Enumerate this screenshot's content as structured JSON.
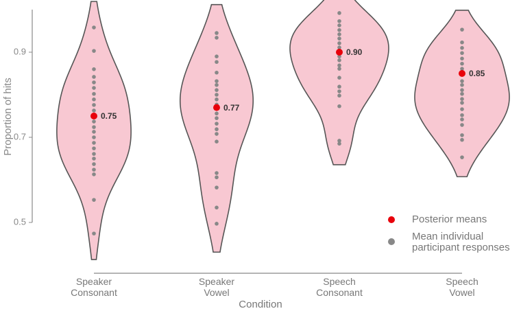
{
  "chart_data": {
    "type": "violin",
    "x_label": "Condition",
    "y_label": "Proportion of hits",
    "categories": [
      "Speaker\nConsonant",
      "Speaker\nVowel",
      "Speech\nConsonant",
      "Speech\nVowel"
    ],
    "violin_color": "#f8c8d2",
    "ylim": [
      0.38,
      1.0
    ],
    "yticks": [
      0.5,
      0.7,
      0.9
    ],
    "series": [
      {
        "name": "Posterior means",
        "color": "#e8000b",
        "values": [
          0.75,
          0.77,
          0.9,
          0.85
        ],
        "value_labels": [
          "0.75",
          "0.77",
          "0.90",
          "0.85"
        ]
      },
      {
        "name": "Mean individual\nparticipant responses",
        "color": "#888888",
        "values": [
          [
            0.958,
            0.903,
            0.86,
            0.842,
            0.829,
            0.816,
            0.802,
            0.789,
            0.776,
            0.763,
            0.737,
            0.724,
            0.713,
            0.7,
            0.687,
            0.674,
            0.661,
            0.65,
            0.637,
            0.624,
            0.613,
            0.553,
            0.474
          ],
          [
            0.945,
            0.934,
            0.89,
            0.877,
            0.852,
            0.832,
            0.823,
            0.811,
            0.8,
            0.789,
            0.777,
            0.756,
            0.745,
            0.732,
            0.719,
            0.708,
            0.69,
            0.616,
            0.606,
            0.582,
            0.535,
            0.497
          ],
          [
            0.992,
            0.973,
            0.963,
            0.952,
            0.942,
            0.932,
            0.921,
            0.911,
            0.89,
            0.881,
            0.869,
            0.861,
            0.84,
            0.819,
            0.808,
            0.798,
            0.773,
            0.692,
            0.685
          ],
          [
            0.953,
            0.923,
            0.91,
            0.898,
            0.885,
            0.873,
            0.861,
            0.832,
            0.823,
            0.811,
            0.802,
            0.79,
            0.781,
            0.766,
            0.752,
            0.742,
            0.729,
            0.705,
            0.694,
            0.653
          ]
        ]
      }
    ]
  }
}
